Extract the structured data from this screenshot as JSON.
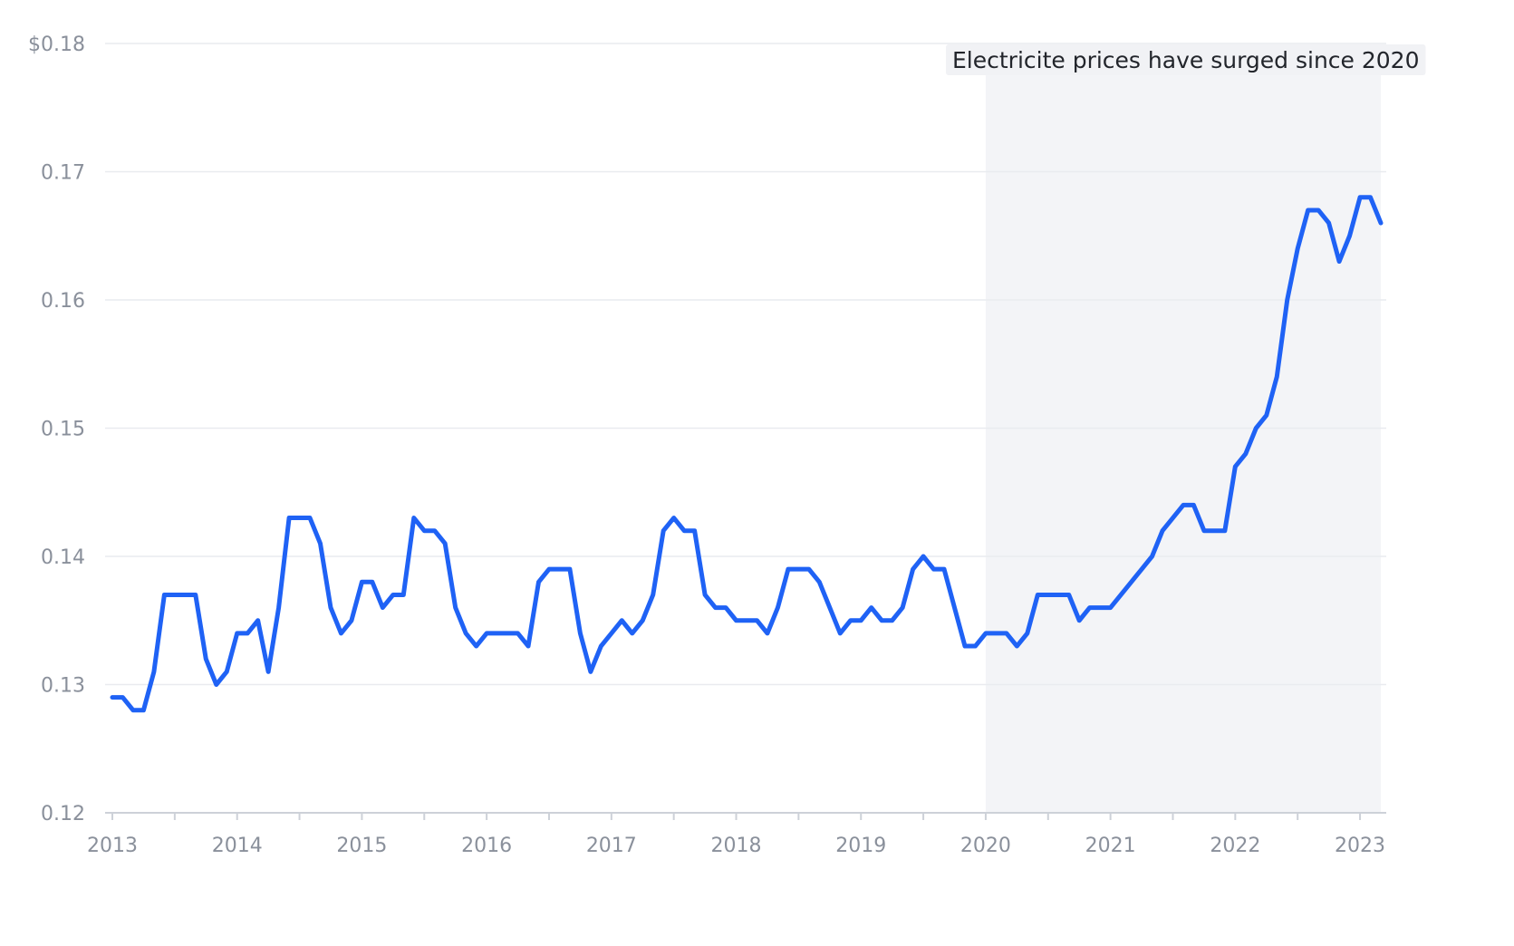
{
  "chart_data": {
    "type": "line",
    "title": "",
    "xlabel": "",
    "ylabel": "",
    "ylim": [
      0.12,
      0.18
    ],
    "y_ticks": [
      {
        "value": 0.18,
        "label": "$0.18"
      },
      {
        "value": 0.17,
        "label": "0.17"
      },
      {
        "value": 0.16,
        "label": "0.16"
      },
      {
        "value": 0.15,
        "label": "0.15"
      },
      {
        "value": 0.14,
        "label": "0.14"
      },
      {
        "value": 0.13,
        "label": "0.13"
      },
      {
        "value": 0.12,
        "label": "0.12"
      }
    ],
    "x_ticks": [
      "2013",
      "2014",
      "2015",
      "2016",
      "2017",
      "2018",
      "2019",
      "2020",
      "2021",
      "2022",
      "2023"
    ],
    "grid": true,
    "line_color": "#1f62f5",
    "shaded_region": {
      "from": "2020-01",
      "to": "2023-03"
    },
    "annotation": "Electricite prices have surged since 2020",
    "series": [
      {
        "x": [
          "2013-01",
          "2013-02",
          "2013-03",
          "2013-04",
          "2013-05",
          "2013-06",
          "2013-07",
          "2013-08",
          "2013-09",
          "2013-10",
          "2013-11",
          "2013-12",
          "2014-01",
          "2014-02",
          "2014-03",
          "2014-04",
          "2014-05",
          "2014-06",
          "2014-07",
          "2014-08",
          "2014-09",
          "2014-10",
          "2014-11",
          "2014-12",
          "2015-01",
          "2015-02",
          "2015-03",
          "2015-04",
          "2015-05",
          "2015-06",
          "2015-07",
          "2015-08",
          "2015-09",
          "2015-10",
          "2015-11",
          "2015-12",
          "2016-01",
          "2016-02",
          "2016-03",
          "2016-04",
          "2016-05",
          "2016-06",
          "2016-07",
          "2016-08",
          "2016-09",
          "2016-10",
          "2016-11",
          "2016-12",
          "2017-01",
          "2017-02",
          "2017-03",
          "2017-04",
          "2017-05",
          "2017-06",
          "2017-07",
          "2017-08",
          "2017-09",
          "2017-10",
          "2017-11",
          "2017-12",
          "2018-01",
          "2018-02",
          "2018-03",
          "2018-04",
          "2018-05",
          "2018-06",
          "2018-07",
          "2018-08",
          "2018-09",
          "2018-10",
          "2018-11",
          "2018-12",
          "2019-01",
          "2019-02",
          "2019-03",
          "2019-04",
          "2019-05",
          "2019-06",
          "2019-07",
          "2019-08",
          "2019-09",
          "2019-10",
          "2019-11",
          "2019-12",
          "2020-01",
          "2020-02",
          "2020-03",
          "2020-04",
          "2020-05",
          "2020-06",
          "2020-07",
          "2020-08",
          "2020-09",
          "2020-10",
          "2020-11",
          "2020-12",
          "2021-01",
          "2021-02",
          "2021-03",
          "2021-04",
          "2021-05",
          "2021-06",
          "2021-07",
          "2021-08",
          "2021-09",
          "2021-10",
          "2021-11",
          "2021-12",
          "2022-01",
          "2022-02",
          "2022-03",
          "2022-04",
          "2022-05",
          "2022-06",
          "2022-07",
          "2022-08",
          "2022-09",
          "2022-10",
          "2022-11",
          "2022-12",
          "2023-01",
          "2023-02",
          "2023-03"
        ],
        "values": [
          0.129,
          0.129,
          0.128,
          0.128,
          0.131,
          0.137,
          0.137,
          0.137,
          0.137,
          0.132,
          0.13,
          0.131,
          0.134,
          0.134,
          0.135,
          0.131,
          0.136,
          0.143,
          0.143,
          0.143,
          0.141,
          0.136,
          0.134,
          0.135,
          0.138,
          0.138,
          0.136,
          0.137,
          0.137,
          0.143,
          0.142,
          0.142,
          0.141,
          0.136,
          0.134,
          0.133,
          0.134,
          0.134,
          0.134,
          0.134,
          0.133,
          0.138,
          0.139,
          0.139,
          0.139,
          0.134,
          0.131,
          0.133,
          0.134,
          0.135,
          0.134,
          0.135,
          0.137,
          0.142,
          0.143,
          0.142,
          0.142,
          0.137,
          0.136,
          0.136,
          0.135,
          0.135,
          0.135,
          0.134,
          0.136,
          0.139,
          0.139,
          0.139,
          0.138,
          0.136,
          0.134,
          0.135,
          0.135,
          0.136,
          0.135,
          0.135,
          0.136,
          0.139,
          0.14,
          0.139,
          0.139,
          0.136,
          0.133,
          0.133,
          0.134,
          0.134,
          0.134,
          0.133,
          0.134,
          0.137,
          0.137,
          0.137,
          0.137,
          0.135,
          0.136,
          0.136,
          0.136,
          0.137,
          0.138,
          0.139,
          0.14,
          0.142,
          0.143,
          0.144,
          0.144,
          0.142,
          0.142,
          0.142,
          0.147,
          0.148,
          0.15,
          0.151,
          0.154,
          0.16,
          0.164,
          0.167,
          0.167,
          0.166,
          0.163,
          0.165,
          0.168,
          0.168,
          0.166
        ]
      }
    ]
  }
}
